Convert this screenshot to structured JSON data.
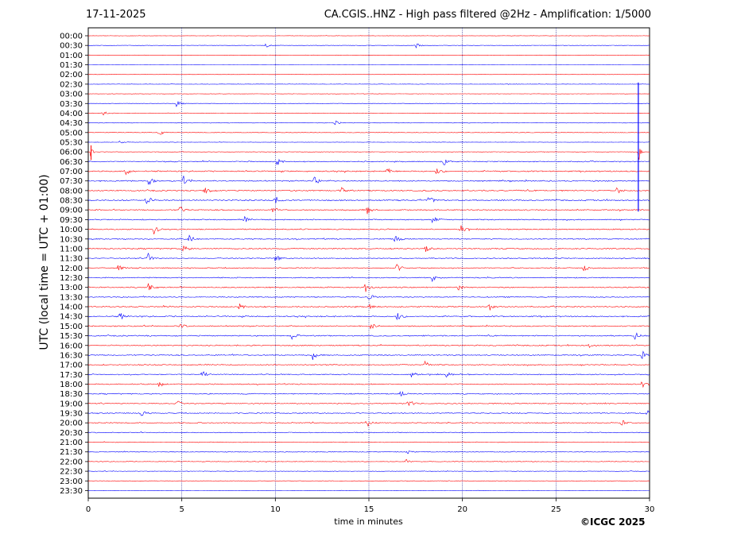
{
  "header": {
    "date": "17-11-2025",
    "title": "CA.CGIS..HNZ - High pass filtered @2Hz - Amplification: 1/5000"
  },
  "footer": {
    "copyright": "©ICGC 2025"
  },
  "colors": {
    "red": "#ff0000",
    "blue": "#0000ff",
    "grid": "#000080"
  },
  "chart_data": {
    "type": "line",
    "title": "CA.CGIS..HNZ - High pass filtered @2Hz - Amplification: 1/5000",
    "xlabel": "time in minutes",
    "ylabel": "UTC (local time = UTC + 01:00)",
    "xlim": [
      0,
      30
    ],
    "xticks": [
      "0",
      "5",
      "10",
      "15",
      "20",
      "25",
      "30"
    ],
    "vertical_grid_minutes": [
      5,
      10,
      15,
      20,
      25
    ],
    "row_labels": [
      "00:00",
      "00:30",
      "01:00",
      "01:30",
      "02:00",
      "02:30",
      "03:00",
      "03:30",
      "04:00",
      "04:30",
      "05:00",
      "05:30",
      "06:00",
      "06:30",
      "07:00",
      "07:30",
      "08:00",
      "08:30",
      "09:00",
      "09:30",
      "10:00",
      "10:30",
      "11:00",
      "11:30",
      "12:00",
      "12:30",
      "13:00",
      "13:30",
      "14:00",
      "14:30",
      "15:00",
      "15:30",
      "16:00",
      "16:30",
      "17:00",
      "17:30",
      "18:00",
      "18:30",
      "19:00",
      "19:30",
      "20:00",
      "20:30",
      "21:00",
      "21:30",
      "22:00",
      "22:30",
      "23:00",
      "23:30"
    ],
    "trace_colors": [
      "red",
      "blue"
    ],
    "traces_present": 48,
    "noise_level": [
      0.2,
      0.2,
      0.1,
      0.05,
      0.1,
      0.2,
      0.2,
      0.2,
      0.25,
      0.25,
      0.25,
      0.2,
      0.25,
      0.5,
      0.6,
      0.6,
      0.6,
      0.6,
      0.6,
      0.55,
      0.55,
      0.55,
      0.55,
      0.5,
      0.5,
      0.5,
      0.55,
      0.5,
      0.55,
      0.6,
      0.55,
      0.55,
      0.55,
      0.55,
      0.55,
      0.5,
      0.5,
      0.5,
      0.5,
      0.5,
      0.5,
      0.4,
      0.35,
      0.35,
      0.3,
      0.25,
      0.2,
      0.15
    ],
    "events": [
      {
        "row": 1,
        "minute": 9.5,
        "amp": 0.6
      },
      {
        "row": 1,
        "minute": 17.5,
        "amp": 0.8
      },
      {
        "row": 7,
        "minute": 4.7,
        "amp": 0.9
      },
      {
        "row": 8,
        "minute": 0.8,
        "amp": 0.7
      },
      {
        "row": 9,
        "minute": 13.2,
        "amp": 0.6
      },
      {
        "row": 10,
        "minute": 3.8,
        "amp": 0.9
      },
      {
        "row": 11,
        "minute": 1.7,
        "amp": 0.5
      },
      {
        "row": 12,
        "minute": 0.15,
        "amp": 3.0
      },
      {
        "row": 12,
        "minute": 29.4,
        "amp": 4.0
      },
      {
        "row": 13,
        "minute": 10.1,
        "amp": 1.2
      },
      {
        "row": 13,
        "minute": 19.0,
        "amp": 1.3
      },
      {
        "row": 14,
        "minute": 2.0,
        "amp": 1.2
      },
      {
        "row": 14,
        "minute": 16.0,
        "amp": 1.0
      },
      {
        "row": 14,
        "minute": 18.6,
        "amp": 1.0
      },
      {
        "row": 15,
        "minute": 3.2,
        "amp": 1.4
      },
      {
        "row": 15,
        "minute": 5.1,
        "amp": 1.2
      },
      {
        "row": 15,
        "minute": 12.1,
        "amp": 1.2
      },
      {
        "row": 16,
        "minute": 6.2,
        "amp": 1.2
      },
      {
        "row": 16,
        "minute": 13.5,
        "amp": 1.0
      },
      {
        "row": 16,
        "minute": 28.2,
        "amp": 1.2
      },
      {
        "row": 17,
        "minute": 3.1,
        "amp": 1.6
      },
      {
        "row": 17,
        "minute": 10.0,
        "amp": 1.4
      },
      {
        "row": 17,
        "minute": 18.2,
        "amp": 1.5
      },
      {
        "row": 18,
        "minute": 4.9,
        "amp": 1.2
      },
      {
        "row": 18,
        "minute": 9.9,
        "amp": 1.0
      },
      {
        "row": 18,
        "minute": 14.9,
        "amp": 1.1
      },
      {
        "row": 19,
        "minute": 8.3,
        "amp": 1.1
      },
      {
        "row": 19,
        "minute": 18.4,
        "amp": 1.2
      },
      {
        "row": 20,
        "minute": 3.5,
        "amp": 1.4
      },
      {
        "row": 20,
        "minute": 19.9,
        "amp": 1.2
      },
      {
        "row": 21,
        "minute": 5.4,
        "amp": 1.2
      },
      {
        "row": 21,
        "minute": 16.4,
        "amp": 1.1
      },
      {
        "row": 22,
        "minute": 5.1,
        "amp": 1.2
      },
      {
        "row": 22,
        "minute": 18.0,
        "amp": 1.1
      },
      {
        "row": 23,
        "minute": 3.2,
        "amp": 1.4
      },
      {
        "row": 23,
        "minute": 10.0,
        "amp": 1.2
      },
      {
        "row": 24,
        "minute": 1.6,
        "amp": 1.0
      },
      {
        "row": 24,
        "minute": 16.5,
        "amp": 1.2
      },
      {
        "row": 24,
        "minute": 26.5,
        "amp": 1.1
      },
      {
        "row": 25,
        "minute": 18.4,
        "amp": 1.2
      },
      {
        "row": 26,
        "minute": 3.2,
        "amp": 1.2
      },
      {
        "row": 26,
        "minute": 14.8,
        "amp": 1.4
      },
      {
        "row": 26,
        "minute": 19.8,
        "amp": 1.1
      },
      {
        "row": 27,
        "minute": 15.0,
        "amp": 1.2
      },
      {
        "row": 28,
        "minute": 8.1,
        "amp": 1.1
      },
      {
        "row": 28,
        "minute": 15.0,
        "amp": 1.0
      },
      {
        "row": 28,
        "minute": 21.4,
        "amp": 1.3
      },
      {
        "row": 29,
        "minute": 1.7,
        "amp": 1.1
      },
      {
        "row": 29,
        "minute": 16.5,
        "amp": 1.4
      },
      {
        "row": 30,
        "minute": 4.9,
        "amp": 1.0
      },
      {
        "row": 30,
        "minute": 15.1,
        "amp": 1.0
      },
      {
        "row": 31,
        "minute": 10.9,
        "amp": 1.3
      },
      {
        "row": 31,
        "minute": 29.2,
        "amp": 1.3
      },
      {
        "row": 32,
        "minute": 26.8,
        "amp": 1.0
      },
      {
        "row": 33,
        "minute": 12.0,
        "amp": 1.3
      },
      {
        "row": 33,
        "minute": 29.6,
        "amp": 1.2
      },
      {
        "row": 34,
        "minute": 18.0,
        "amp": 1.0
      },
      {
        "row": 35,
        "minute": 6.1,
        "amp": 1.0
      },
      {
        "row": 35,
        "minute": 17.3,
        "amp": 1.1
      },
      {
        "row": 35,
        "minute": 19.1,
        "amp": 1.1
      },
      {
        "row": 36,
        "minute": 3.8,
        "amp": 1.0
      },
      {
        "row": 36,
        "minute": 29.6,
        "amp": 1.2
      },
      {
        "row": 37,
        "minute": 16.7,
        "amp": 1.0
      },
      {
        "row": 38,
        "minute": 4.7,
        "amp": 1.1
      },
      {
        "row": 38,
        "minute": 17.1,
        "amp": 1.3
      },
      {
        "row": 39,
        "minute": 2.8,
        "amp": 1.2
      },
      {
        "row": 39,
        "minute": 29.9,
        "amp": 1.1
      },
      {
        "row": 40,
        "minute": 14.9,
        "amp": 1.2
      },
      {
        "row": 40,
        "minute": 28.5,
        "amp": 0.9
      },
      {
        "row": 43,
        "minute": 17.0,
        "amp": 0.6
      },
      {
        "row": 44,
        "minute": 17.0,
        "amp": 0.6
      }
    ]
  }
}
